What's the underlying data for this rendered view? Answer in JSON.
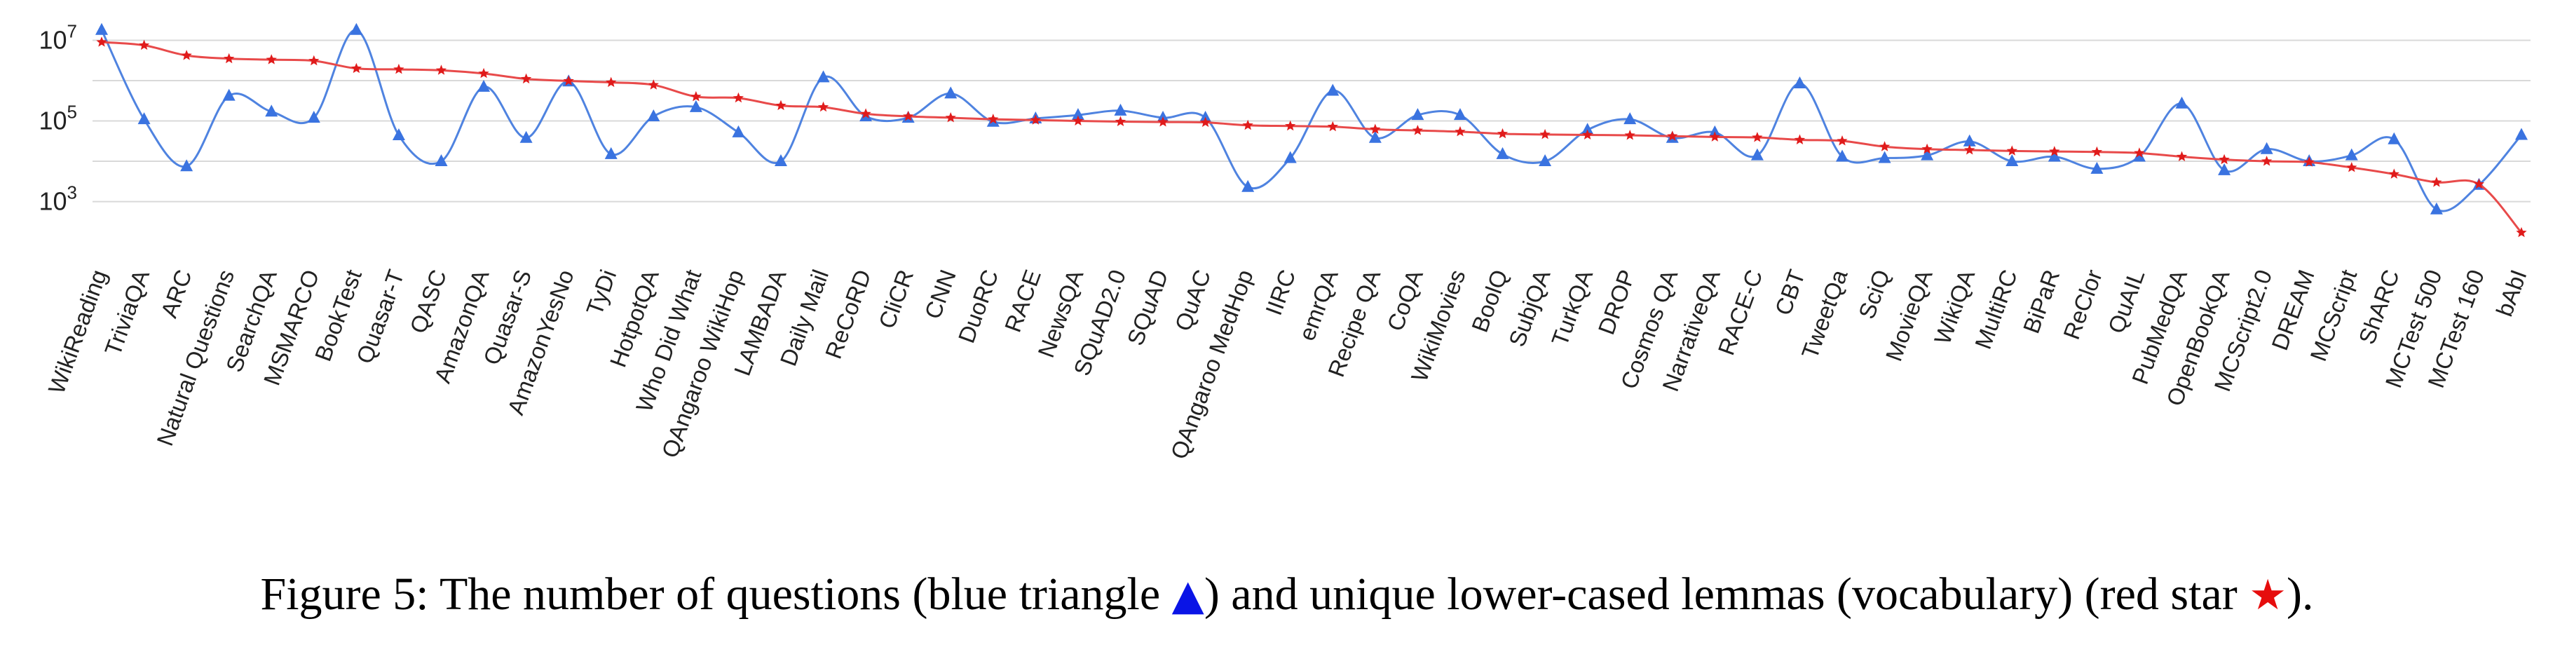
{
  "chart_data": {
    "type": "line",
    "y_scale": "log",
    "ylim": [
      150,
      30000000
    ],
    "y_ticks": [
      {
        "value": 1000,
        "base": "10",
        "exp": "3"
      },
      {
        "value": 100000,
        "base": "10",
        "exp": "5"
      },
      {
        "value": 10000000,
        "base": "10",
        "exp": "7"
      }
    ],
    "grid": true,
    "categories": [
      "WikiReading",
      "TriviaQA",
      "ARC",
      "Natural Questions",
      "SearchQA",
      "MSMARCO",
      "BookTest",
      "Quasar-T",
      "QASC",
      "AmazonQA",
      "Quasar-S",
      "AmazonYesNo",
      "TyDi",
      "HotpotQA",
      "Who Did What",
      "QAngaroo WikiHop",
      "LAMBADA",
      "Daily Mail",
      "ReCoRD",
      "CliCR",
      "CNN",
      "DuoRC",
      "RACE",
      "NewsQA",
      "SQuAD2.0",
      "SQuAD",
      "QuAC",
      "QAngaroo MedHop",
      "IIRC",
      "emrQA",
      "Recipe QA",
      "CoQA",
      "WikiMovies",
      "BoolQ",
      "SubjQA",
      "TurkQA",
      "DROP",
      "Cosmos QA",
      "NarrativeQA",
      "RACE-C",
      "CBT",
      "TweetQa",
      "SciQ",
      "MovieQA",
      "WikiQA",
      "MultiRC",
      "BiPaR",
      "ReClor",
      "QuAIL",
      "PubMedQA",
      "OpenBookQA",
      "MCScript2.0",
      "DREAM",
      "MCScript",
      "ShARC",
      "MCTest 500",
      "MCTest 160",
      "bAbI"
    ],
    "series": [
      {
        "marker": "triangle",
        "color": "#4f83e0",
        "values": [
          18000000,
          110000,
          7500,
          420000,
          170000,
          120000,
          18000000,
          44000,
          10000,
          700000,
          38000,
          950000,
          15000,
          130000,
          220000,
          52000,
          10000,
          1200000,
          130000,
          120000,
          480000,
          95000,
          115000,
          140000,
          180000,
          120000,
          120000,
          2300,
          12000,
          560000,
          38000,
          140000,
          140000,
          15000,
          10000,
          60000,
          110000,
          38000,
          52000,
          14000,
          850000,
          13000,
          12000,
          14000,
          31000,
          10000,
          13000,
          6500,
          13000,
          270000,
          6000,
          20000,
          10000,
          14000,
          35000,
          640,
          2600,
          45000
        ]
      },
      {
        "marker": "star",
        "color": "#e84a4a",
        "values": [
          9000000,
          7500000,
          4200000,
          3500000,
          3300000,
          3100000,
          2000000,
          1900000,
          1800000,
          1500000,
          1100000,
          980000,
          900000,
          780000,
          400000,
          370000,
          240000,
          220000,
          150000,
          130000,
          120000,
          110000,
          105000,
          100000,
          96000,
          94000,
          92000,
          78000,
          75000,
          72000,
          62000,
          58000,
          54000,
          48000,
          46000,
          45000,
          44000,
          42000,
          40000,
          39000,
          34000,
          32000,
          23000,
          20000,
          19000,
          18000,
          17500,
          17000,
          16000,
          13000,
          11000,
          10000,
          9500,
          7000,
          4800,
          3000,
          2700,
          170
        ]
      }
    ]
  },
  "caption": {
    "text_before": "Figure 5: The number of questions (blue triangle ",
    "triangle_glyph": "▲",
    "text_middle": ") and unique lower-cased lemmas (vocabulary) (red star ",
    "star_glyph": "★",
    "text_after": ")."
  }
}
